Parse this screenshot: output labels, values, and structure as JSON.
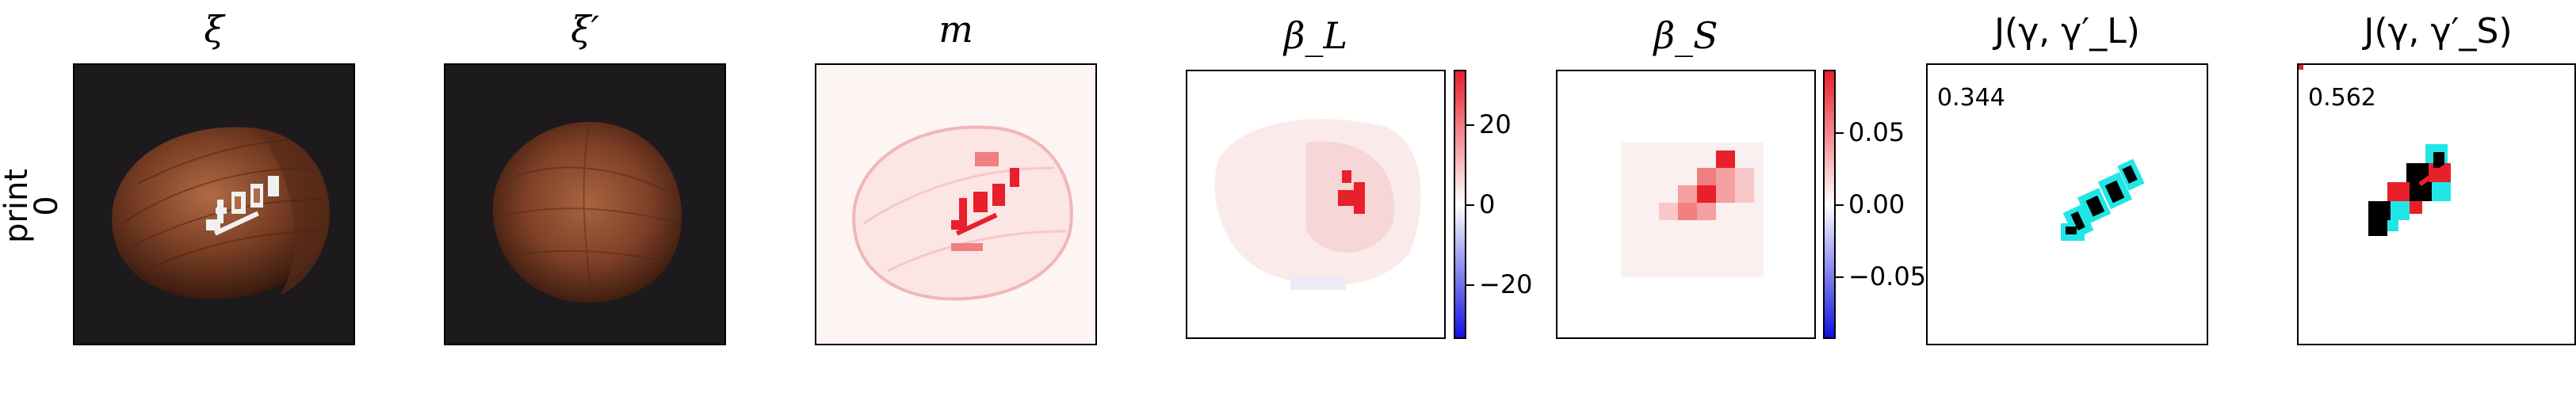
{
  "row": {
    "label_line1": "print",
    "label_line2": "0"
  },
  "panels": [
    {
      "id": "xi",
      "title": "ξ"
    },
    {
      "id": "xi_prime",
      "title": "ξ′"
    },
    {
      "id": "m",
      "title": "m"
    },
    {
      "id": "beta_L",
      "title": "β_L"
    },
    {
      "id": "beta_S",
      "title": "β_S"
    },
    {
      "id": "J_L",
      "title": "J(γ, γ′_L)",
      "score": "0.344"
    },
    {
      "id": "J_S",
      "title": "J(γ, γ′_S)",
      "score": "0.562"
    }
  ],
  "colorbars": {
    "beta_L": {
      "ticks": [
        "20",
        "0",
        "−20"
      ],
      "range": [
        -33,
        33
      ]
    },
    "beta_S": {
      "ticks": [
        "0.05",
        "0.00",
        "−0.05"
      ],
      "range": [
        -0.095,
        0.095
      ]
    }
  },
  "colors": {
    "nut_dark": "#3a1c10",
    "nut_mid": "#7a3f25",
    "nut_light": "#b06a45",
    "bg_dark": "#1c1a1c",
    "heat_red": "#e8202a",
    "heat_blue": "#1010e0",
    "overlay_cyan": "#22e6e6"
  }
}
